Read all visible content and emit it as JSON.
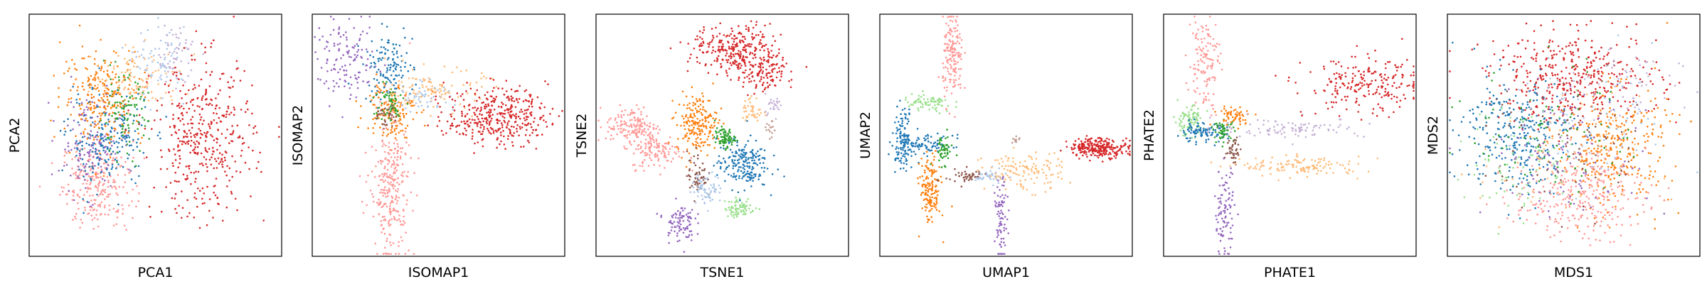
{
  "chart_data": [
    {
      "type": "scatter",
      "xlabel": "PCA1",
      "ylabel": "PCA2",
      "title": "",
      "xlim": [
        0,
        100
      ],
      "ylim": [
        0,
        100
      ],
      "grid": false,
      "clusters": [
        {
          "color": "#ff9896",
          "x": 27,
          "y": 30,
          "sx": 7,
          "sy": 9,
          "n": 260
        },
        {
          "color": "#9467bd",
          "x": 24,
          "y": 47,
          "sx": 6,
          "sy": 10,
          "n": 150
        },
        {
          "color": "#1f77b4",
          "x": 31,
          "y": 48,
          "sx": 8,
          "sy": 10,
          "n": 200
        },
        {
          "color": "#2ca02c",
          "x": 37,
          "y": 58,
          "sx": 5,
          "sy": 8,
          "n": 110
        },
        {
          "color": "#ff7f0e",
          "x": 29,
          "y": 67,
          "sx": 8,
          "sy": 10,
          "n": 230
        },
        {
          "color": "#ffbb78",
          "x": 43,
          "y": 73,
          "sx": 9,
          "sy": 6,
          "n": 100
        },
        {
          "color": "#aec7e8",
          "x": 52,
          "y": 80,
          "sx": 5,
          "sy": 7,
          "n": 70
        },
        {
          "color": "#c5b0d5",
          "x": 58,
          "y": 84,
          "sx": 4,
          "sy": 6,
          "n": 55
        },
        {
          "color": "#d62728",
          "x": 69,
          "y": 48,
          "sx": 10,
          "sy": 16,
          "n": 420
        }
      ]
    },
    {
      "type": "scatter",
      "xlabel": "ISOMAP1",
      "ylabel": "ISOMAP2",
      "title": "",
      "xlim": [
        0,
        100
      ],
      "ylim": [
        0,
        100
      ],
      "grid": false,
      "clusters": [
        {
          "color": "#9467bd",
          "x": 14,
          "y": 81,
          "sx": 6,
          "sy": 8,
          "n": 130
        },
        {
          "color": "#1f77b4",
          "x": 30,
          "y": 78,
          "sx": 5,
          "sy": 7,
          "n": 130
        },
        {
          "color": "#ff7f0e",
          "x": 31,
          "y": 61,
          "sx": 5,
          "sy": 6,
          "n": 150
        },
        {
          "color": "#2ca02c",
          "x": 30,
          "y": 63,
          "sx": 3,
          "sy": 4,
          "n": 60
        },
        {
          "color": "#8c564b",
          "x": 29,
          "y": 57,
          "sx": 2,
          "sy": 3,
          "n": 30
        },
        {
          "color": "#ffbb78",
          "x": 50,
          "y": 69,
          "sx": 9,
          "sy": 4,
          "n": 110
        },
        {
          "color": "#aec7e8",
          "x": 44,
          "y": 66,
          "sx": 6,
          "sy": 3,
          "n": 50
        },
        {
          "color": "#ff9896",
          "x": 31,
          "y": 28,
          "sx": 4,
          "sy": 14,
          "n": 280
        },
        {
          "color": "#d62728",
          "x": 73,
          "y": 58,
          "sx": 10,
          "sy": 6,
          "n": 380
        }
      ]
    },
    {
      "type": "scatter",
      "xlabel": "TSNE1",
      "ylabel": "TSNE2",
      "title": "",
      "xlim": [
        0,
        100
      ],
      "ylim": [
        0,
        100
      ],
      "grid": false,
      "clusters": [
        {
          "color": "#d62728",
          "x": 56,
          "y": 85,
          "sx": 9,
          "sy": 5,
          "n": 300
        },
        {
          "color": "#d62728",
          "x": 66,
          "y": 74,
          "sx": 4,
          "sy": 4,
          "n": 100
        },
        {
          "color": "#ff9896",
          "x": 14,
          "y": 54,
          "sx": 5,
          "sy": 4,
          "n": 150
        },
        {
          "color": "#ff9896",
          "x": 24,
          "y": 44,
          "sx": 5,
          "sy": 4,
          "n": 130
        },
        {
          "color": "#ff7f0e",
          "x": 40,
          "y": 55,
          "sx": 4,
          "sy": 6,
          "n": 200
        },
        {
          "color": "#2ca02c",
          "x": 51,
          "y": 49,
          "sx": 2,
          "sy": 2,
          "n": 80
        },
        {
          "color": "#1f77b4",
          "x": 58,
          "y": 38,
          "sx": 5,
          "sy": 5,
          "n": 200
        },
        {
          "color": "#8c564b",
          "x": 40,
          "y": 34,
          "sx": 2,
          "sy": 5,
          "n": 60
        },
        {
          "color": "#aec7e8",
          "x": 44,
          "y": 28,
          "sx": 3,
          "sy": 3,
          "n": 70
        },
        {
          "color": "#98df8a",
          "x": 57,
          "y": 20,
          "sx": 3,
          "sy": 2,
          "n": 70
        },
        {
          "color": "#9467bd",
          "x": 33,
          "y": 14,
          "sx": 3,
          "sy": 4,
          "n": 90
        },
        {
          "color": "#ffbb78",
          "x": 62,
          "y": 60,
          "sx": 2,
          "sy": 3,
          "n": 40
        },
        {
          "color": "#c5b0d5",
          "x": 70,
          "y": 63,
          "sx": 2,
          "sy": 2,
          "n": 25
        },
        {
          "color": "#c49c94",
          "x": 69,
          "y": 52,
          "sx": 1,
          "sy": 2,
          "n": 15
        }
      ]
    },
    {
      "type": "scatter",
      "xlabel": "UMAP1",
      "ylabel": "UMAP2",
      "title": "",
      "xlim": [
        0,
        100
      ],
      "ylim": [
        0,
        100
      ],
      "grid": false,
      "clusters": [
        {
          "color": "#ff9896",
          "x": 29,
          "y": 82,
          "sx": 2,
          "sy": 9,
          "n": 160
        },
        {
          "color": "#98df8a",
          "x": 19,
          "y": 63,
          "sx": 5,
          "sy": 2,
          "n": 70
        },
        {
          "color": "#1f77b4",
          "x": 9,
          "y": 49,
          "sx": 2,
          "sy": 6,
          "n": 120
        },
        {
          "color": "#1f77b4",
          "x": 19,
          "y": 46,
          "sx": 5,
          "sy": 2,
          "n": 80
        },
        {
          "color": "#2ca02c",
          "x": 25,
          "y": 44,
          "sx": 2,
          "sy": 3,
          "n": 50
        },
        {
          "color": "#ff7f0e",
          "x": 20,
          "y": 27,
          "sx": 2,
          "sy": 7,
          "n": 150
        },
        {
          "color": "#8c564b",
          "x": 34,
          "y": 33,
          "sx": 4,
          "sy": 1.5,
          "n": 50
        },
        {
          "color": "#aec7e8",
          "x": 44,
          "y": 33,
          "sx": 3,
          "sy": 1.5,
          "n": 40
        },
        {
          "color": "#ffbb78",
          "x": 57,
          "y": 35,
          "sx": 8,
          "sy": 4,
          "n": 130
        },
        {
          "color": "#9467bd",
          "x": 48,
          "y": 15,
          "sx": 1.2,
          "sy": 8,
          "n": 80
        },
        {
          "color": "#d62728",
          "x": 87,
          "y": 45,
          "sx": 6,
          "sy": 2,
          "n": 260
        },
        {
          "color": "#c49c94",
          "x": 54,
          "y": 48,
          "sx": 1,
          "sy": 1,
          "n": 10
        }
      ]
    },
    {
      "type": "scatter",
      "xlabel": "PHATE1",
      "ylabel": "PHATE2",
      "title": "",
      "xlim": [
        0,
        100
      ],
      "ylim": [
        0,
        100
      ],
      "grid": false,
      "clusters": [
        {
          "color": "#ff9896",
          "x": 16,
          "y": 80,
          "sx": 3,
          "sy": 10,
          "n": 130
        },
        {
          "color": "#98df8a",
          "x": 10,
          "y": 56,
          "sx": 3,
          "sy": 3,
          "n": 90
        },
        {
          "color": "#1f77b4",
          "x": 15,
          "y": 51,
          "sx": 5,
          "sy": 2,
          "n": 100
        },
        {
          "color": "#2ca02c",
          "x": 24,
          "y": 52,
          "sx": 2,
          "sy": 2,
          "n": 50
        },
        {
          "color": "#ff7f0e",
          "x": 28,
          "y": 58,
          "sx": 4,
          "sy": 2,
          "n": 60
        },
        {
          "color": "#8c564b",
          "x": 28,
          "y": 44,
          "sx": 1.5,
          "sy": 3,
          "n": 40
        },
        {
          "color": "#c5b0d5",
          "x": 50,
          "y": 53,
          "sx": 15,
          "sy": 2,
          "n": 100
        },
        {
          "color": "#ffbb78",
          "x": 55,
          "y": 37,
          "sx": 12,
          "sy": 2,
          "n": 130
        },
        {
          "color": "#9467bd",
          "x": 24,
          "y": 18,
          "sx": 2,
          "sy": 9,
          "n": 100
        },
        {
          "color": "#d62728",
          "x": 80,
          "y": 70,
          "sx": 12,
          "sy": 6,
          "n": 220
        }
      ]
    },
    {
      "type": "scatter",
      "xlabel": "MDS1",
      "ylabel": "MDS2",
      "title": "",
      "xlim": [
        0,
        100
      ],
      "ylim": [
        0,
        100
      ],
      "grid": false,
      "clusters": [
        {
          "color": "#d62728",
          "x": 50,
          "y": 74,
          "sx": 17,
          "sy": 9,
          "n": 420
        },
        {
          "color": "#1f77b4",
          "x": 28,
          "y": 50,
          "sx": 11,
          "sy": 12,
          "n": 320
        },
        {
          "color": "#ff7f0e",
          "x": 66,
          "y": 45,
          "sx": 11,
          "sy": 12,
          "n": 320
        },
        {
          "color": "#ff9896",
          "x": 52,
          "y": 25,
          "sx": 13,
          "sy": 9,
          "n": 300
        },
        {
          "color": "#98df8a",
          "x": 30,
          "y": 40,
          "sx": 11,
          "sy": 12,
          "n": 80
        },
        {
          "color": "#2ca02c",
          "x": 42,
          "y": 52,
          "sx": 16,
          "sy": 14,
          "n": 80
        },
        {
          "color": "#9467bd",
          "x": 48,
          "y": 42,
          "sx": 16,
          "sy": 14,
          "n": 100
        },
        {
          "color": "#8c564b",
          "x": 50,
          "y": 46,
          "sx": 16,
          "sy": 14,
          "n": 70
        },
        {
          "color": "#aec7e8",
          "x": 58,
          "y": 55,
          "sx": 16,
          "sy": 15,
          "n": 80
        },
        {
          "color": "#c5b0d5",
          "x": 68,
          "y": 70,
          "sx": 12,
          "sy": 8,
          "n": 50
        },
        {
          "color": "#ffbb78",
          "x": 44,
          "y": 38,
          "sx": 16,
          "sy": 14,
          "n": 60
        }
      ]
    }
  ]
}
